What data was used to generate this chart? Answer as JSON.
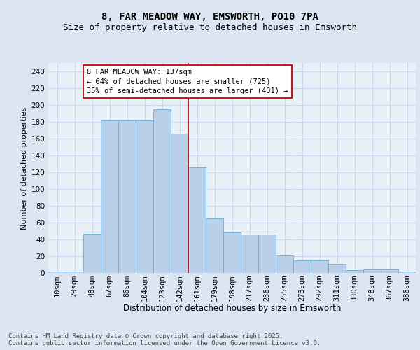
{
  "title": "8, FAR MEADOW WAY, EMSWORTH, PO10 7PA",
  "subtitle": "Size of property relative to detached houses in Emsworth",
  "xlabel": "Distribution of detached houses by size in Emsworth",
  "ylabel": "Number of detached properties",
  "categories": [
    "10sqm",
    "29sqm",
    "48sqm",
    "67sqm",
    "86sqm",
    "104sqm",
    "123sqm",
    "142sqm",
    "161sqm",
    "179sqm",
    "198sqm",
    "217sqm",
    "236sqm",
    "255sqm",
    "273sqm",
    "292sqm",
    "311sqm",
    "330sqm",
    "348sqm",
    "367sqm",
    "386sqm"
  ],
  "values": [
    2,
    2,
    47,
    182,
    182,
    182,
    195,
    166,
    126,
    65,
    48,
    46,
    46,
    21,
    15,
    15,
    11,
    3,
    4,
    4,
    2
  ],
  "bar_color": "#b8d0ea",
  "bar_edge_color": "#6aaad4",
  "bar_width": 1.0,
  "vline_x": 7.5,
  "vline_color": "#cc0000",
  "annotation_line1": "8 FAR MEADOW WAY: 137sqm",
  "annotation_line2": "← 64% of detached houses are smaller (725)",
  "annotation_line3": "35% of semi-detached houses are larger (401) →",
  "annotation_box_color": "#ffffff",
  "annotation_box_edge_color": "#cc0000",
  "ylim": [
    0,
    250
  ],
  "yticks": [
    0,
    20,
    40,
    60,
    80,
    100,
    120,
    140,
    160,
    180,
    200,
    220,
    240
  ],
  "bg_color": "#dce6f2",
  "plot_bg_color": "#e8f0f8",
  "grid_color": "#c8d8ec",
  "footer": "Contains HM Land Registry data © Crown copyright and database right 2025.\nContains public sector information licensed under the Open Government Licence v3.0.",
  "title_fontsize": 10,
  "subtitle_fontsize": 9,
  "xlabel_fontsize": 8.5,
  "ylabel_fontsize": 8,
  "tick_fontsize": 7.5,
  "annotation_fontsize": 7.5,
  "footer_fontsize": 6.5
}
